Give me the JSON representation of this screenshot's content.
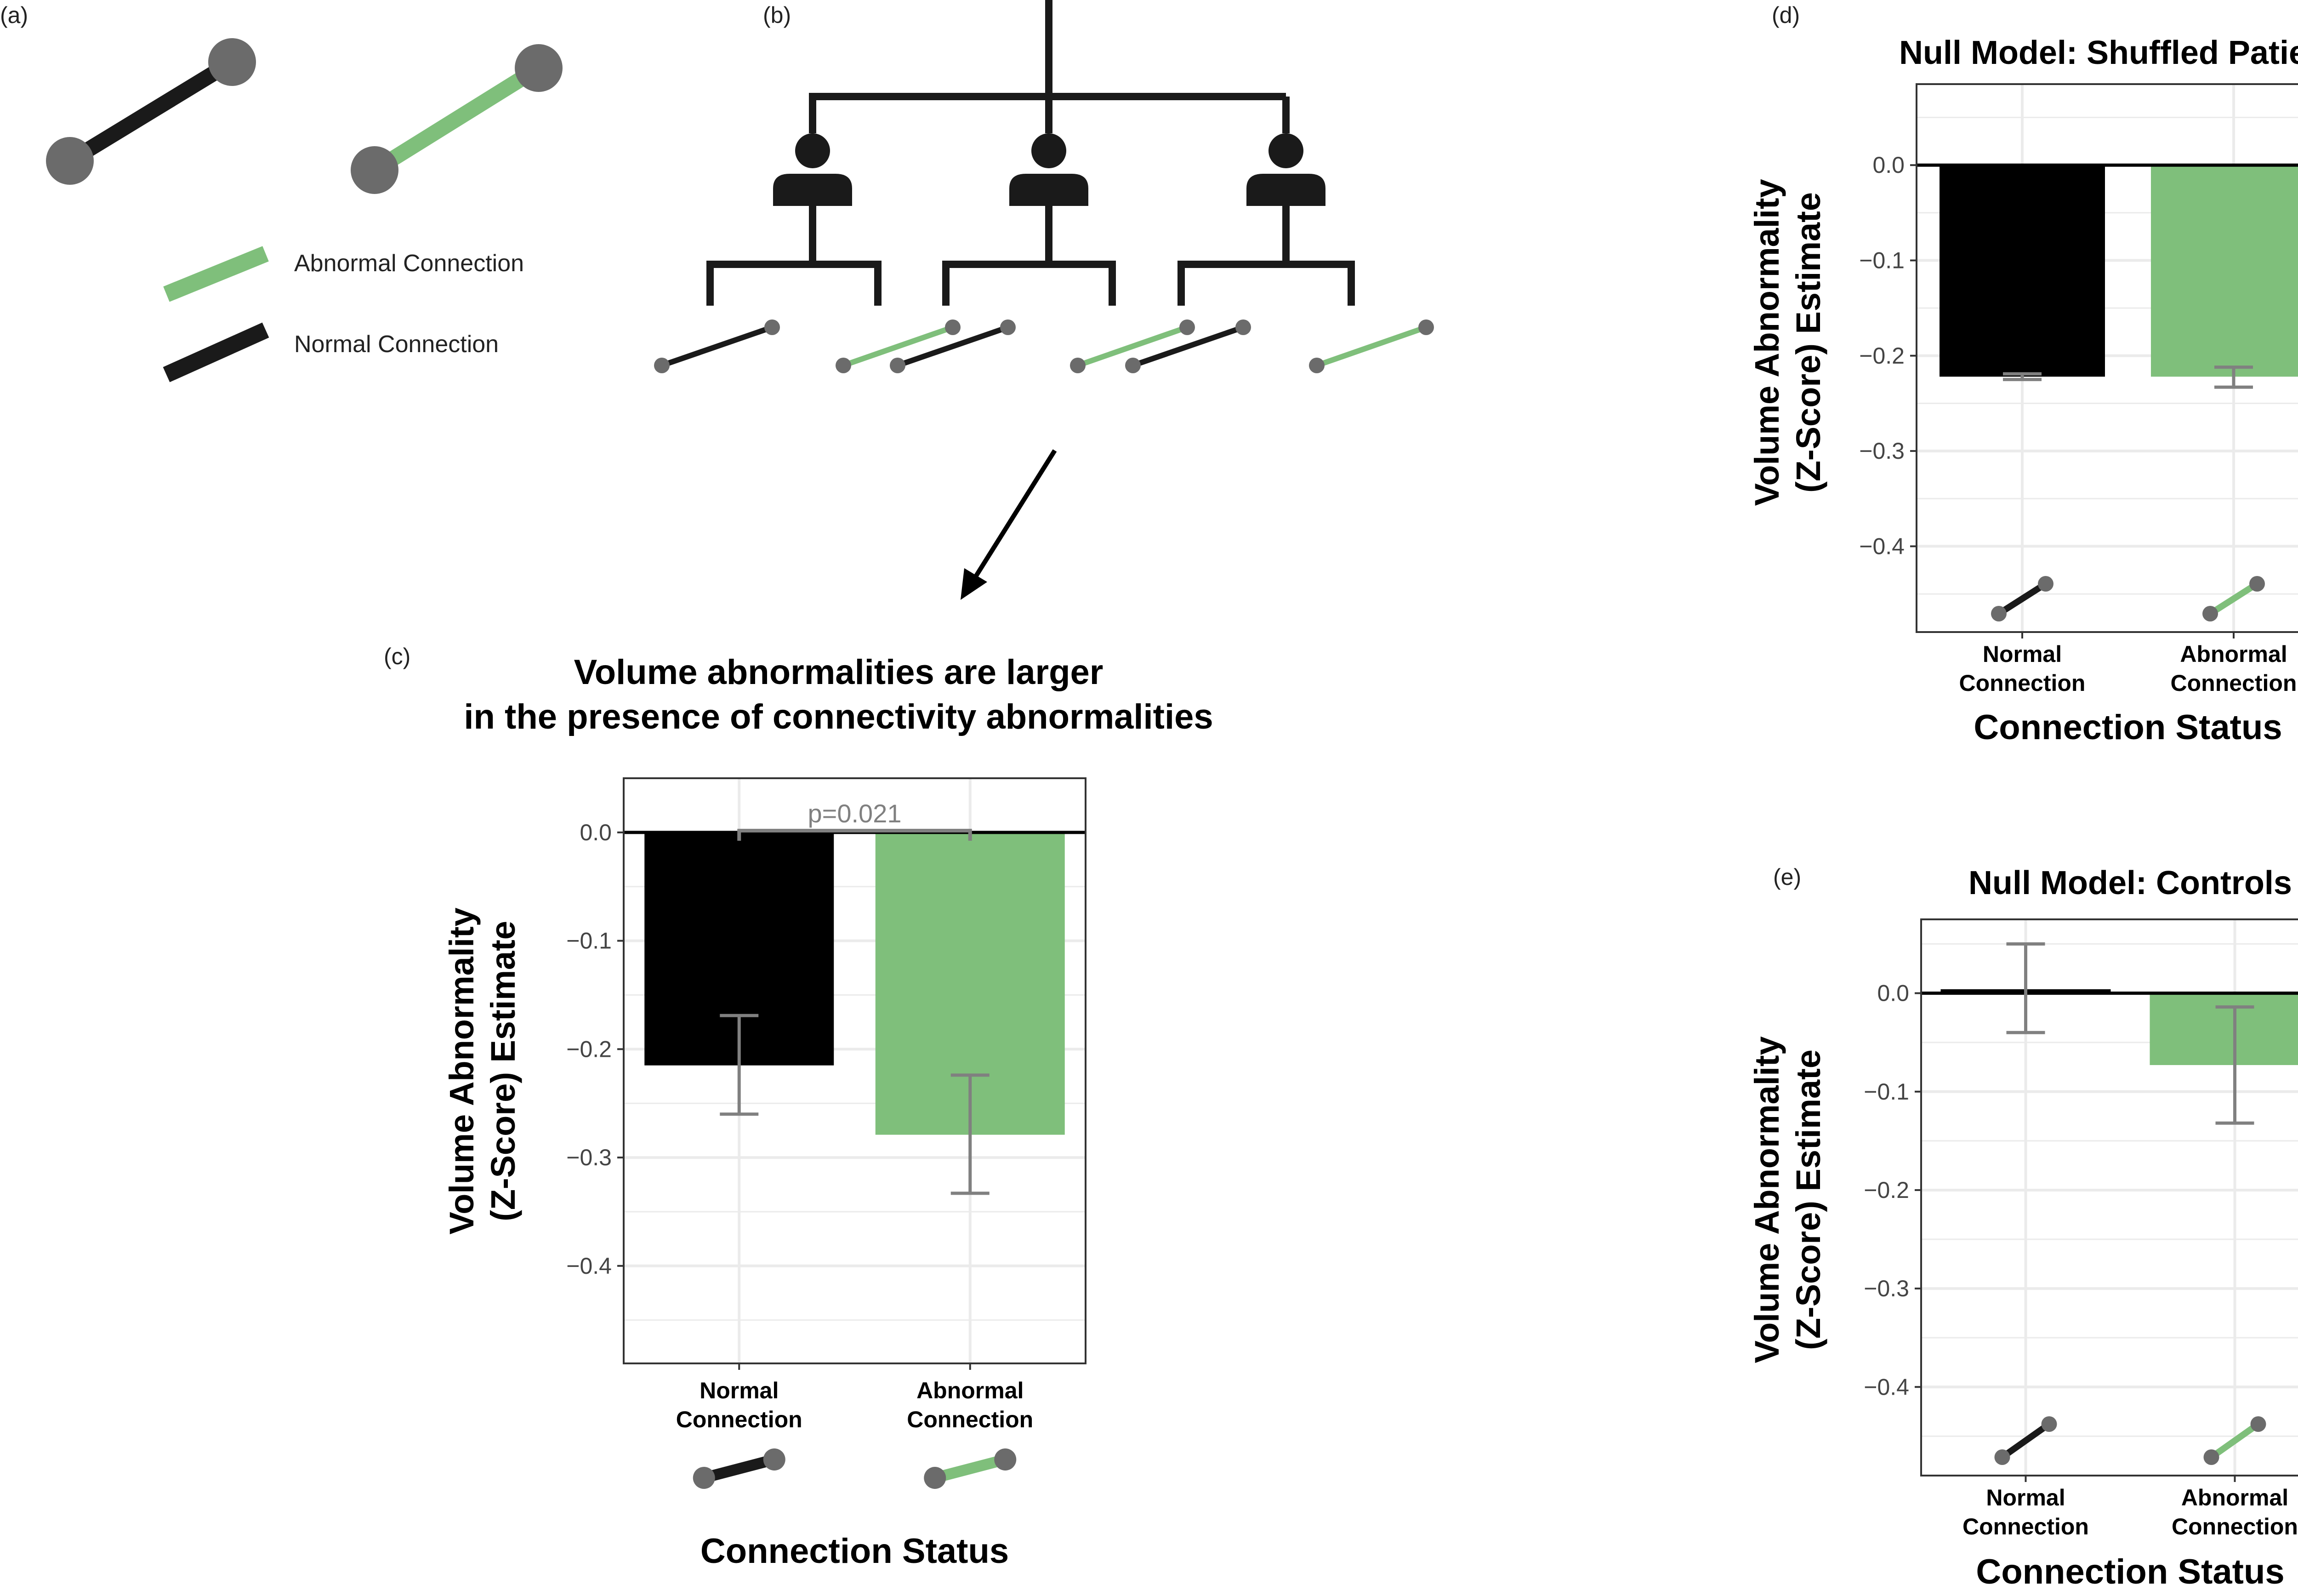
{
  "panel_labels": {
    "a": "(a)",
    "b": "(b)",
    "c": "(c)",
    "d": "(d)",
    "e": "(e)"
  },
  "legend": {
    "abnormal": "Abnormal Connection",
    "normal": "Normal Connection"
  },
  "colors": {
    "normal": "#000000",
    "abnormal": "#7fbf7b",
    "node": "#6b6b6b",
    "errorbar": "#808080",
    "grid": "#ebebeb"
  },
  "chart_data": [
    {
      "id": "c",
      "type": "bar",
      "title_lines": [
        "Volume abnormalities are larger",
        "in the presence of connectivity abnormalities"
      ],
      "title": "",
      "xlabel": "Connection Status",
      "ylabel_lines": [
        "Volume Abnormality",
        "(Z-Score) Estimate"
      ],
      "categories": [
        [
          "Normal",
          "Connection"
        ],
        [
          "Abnormal",
          "Connection"
        ]
      ],
      "values": [
        -0.215,
        -0.279
      ],
      "err_low": [
        -0.26,
        -0.333
      ],
      "err_high": [
        -0.169,
        -0.224
      ],
      "yticks": [
        "0.0",
        "−0.1",
        "−0.2",
        "−0.3",
        "−0.4"
      ],
      "ylim": [
        -0.49,
        0.05
      ],
      "annotation": "p=0.021",
      "grid": true
    },
    {
      "id": "d",
      "type": "bar",
      "title": "Null Model: Shuffled Patients",
      "xlabel": "Connection Status",
      "ylabel_lines": [
        "Volume Abnormality",
        "(Z-Score) Estimate"
      ],
      "categories": [
        [
          "Normal",
          "Connection"
        ],
        [
          "Abnormal",
          "Connection"
        ]
      ],
      "values": [
        -0.222,
        -0.222
      ],
      "err_low": [
        -0.225,
        -0.233
      ],
      "err_high": [
        -0.219,
        -0.212
      ],
      "yticks": [
        "0.0",
        "−0.1",
        "−0.2",
        "−0.3",
        "−0.4"
      ],
      "ylim": [
        -0.49,
        0.085
      ],
      "grid": true
    },
    {
      "id": "e",
      "type": "bar",
      "title": "Null Model: Controls",
      "xlabel": "Connection Status",
      "ylabel_lines": [
        "Volume Abnormality",
        "(Z-Score) Estimate"
      ],
      "categories": [
        [
          "Normal",
          "Connection"
        ],
        [
          "Abnormal",
          "Connection"
        ]
      ],
      "values": [
        0.004,
        -0.073
      ],
      "err_low": [
        -0.04,
        -0.132
      ],
      "err_high": [
        0.05,
        -0.014
      ],
      "yticks": [
        "0.0",
        "−0.1",
        "−0.2",
        "−0.3",
        "−0.4"
      ],
      "ylim": [
        -0.49,
        0.075
      ],
      "grid": true
    }
  ]
}
